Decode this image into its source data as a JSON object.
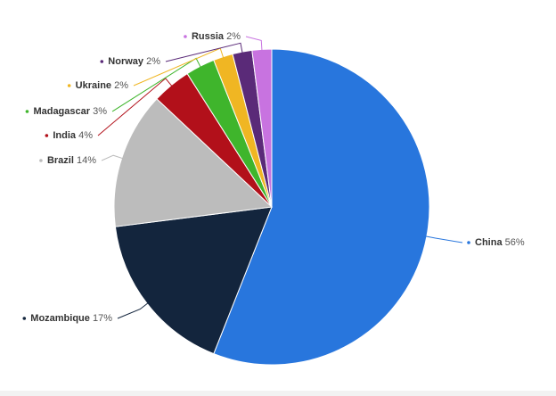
{
  "chart_data": {
    "type": "pie",
    "categories": [
      "China",
      "Mozambique",
      "Brazil",
      "India",
      "Madagascar",
      "Ukraine",
      "Norway",
      "Russia"
    ],
    "values": [
      56,
      17,
      14,
      4,
      3,
      2,
      2,
      2
    ],
    "value_labels": [
      "56%",
      "17%",
      "14%",
      "4%",
      "3%",
      "2%",
      "2%",
      "2%"
    ],
    "colors": [
      "#2876dd",
      "#13253d",
      "#bcbcbc",
      "#b2101a",
      "#3fb52c",
      "#f0b623",
      "#5a2a78",
      "#c873e0"
    ]
  }
}
